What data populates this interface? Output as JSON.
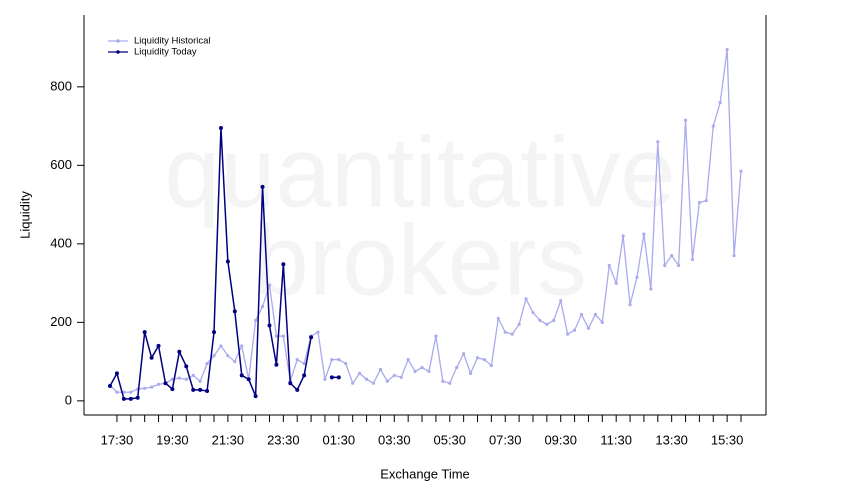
{
  "chart_data": {
    "type": "line",
    "watermark": [
      "quantitative",
      "brokers"
    ],
    "xlabel": "Exchange Time",
    "ylabel": "Liquidity",
    "categories": [
      null,
      "17:30",
      null,
      null,
      null,
      null,
      null,
      null,
      null,
      "19:30",
      null,
      null,
      null,
      null,
      null,
      null,
      null,
      "21:30",
      null,
      null,
      null,
      null,
      null,
      null,
      null,
      "23:30",
      null,
      null,
      null,
      null,
      null,
      null,
      null,
      "01:30",
      null,
      null,
      null,
      null,
      null,
      null,
      null,
      "03:30",
      null,
      null,
      null,
      null,
      null,
      null,
      null,
      "05:30",
      null,
      null,
      null,
      null,
      null,
      null,
      null,
      "07:30",
      null,
      null,
      null,
      null,
      null,
      null,
      null,
      "09:30",
      null,
      null,
      null,
      null,
      null,
      null,
      null,
      "11:30",
      null,
      null,
      null,
      null,
      null,
      null,
      null,
      "13:30",
      null,
      null,
      null,
      null,
      null,
      null,
      null,
      "15:30",
      null,
      null
    ],
    "series": [
      {
        "name": "Liquidity Historical",
        "color": "#aaaaee",
        "values": [
          40,
          22,
          22,
          22,
          30,
          32,
          35,
          42,
          45,
          55,
          58,
          55,
          65,
          50,
          95,
          115,
          140,
          115,
          100,
          140,
          55,
          205,
          240,
          295,
          165,
          165,
          50,
          105,
          95,
          165,
          175,
          55,
          105,
          105,
          95,
          45,
          70,
          55,
          45,
          80,
          50,
          65,
          60,
          105,
          75,
          85,
          75,
          165,
          50,
          45,
          85,
          120,
          70,
          110,
          105,
          90,
          210,
          175,
          170,
          195,
          260,
          225,
          205,
          195,
          205,
          255,
          170,
          180,
          220,
          185,
          220,
          200,
          345,
          300,
          420,
          245,
          315,
          425,
          285,
          660,
          345,
          370,
          345,
          715,
          360,
          505,
          510,
          700,
          760,
          895,
          370,
          585
        ]
      },
      {
        "name": "Liquidity Today",
        "color": "#000080",
        "values": [
          38,
          70,
          5,
          5,
          8,
          175,
          110,
          140,
          45,
          30,
          125,
          88,
          28,
          28,
          25,
          175,
          695,
          355,
          228,
          65,
          55,
          12,
          545,
          192,
          92,
          348,
          45,
          28,
          65,
          162,
          null,
          null,
          60,
          60,
          null,
          null,
          null,
          null,
          null,
          null,
          null,
          null,
          null,
          null,
          null,
          null,
          null,
          null,
          null,
          null,
          null,
          null,
          null,
          null,
          null,
          null,
          null,
          null,
          null,
          null,
          null,
          null,
          null,
          null,
          null,
          null,
          null,
          null,
          null,
          null,
          null,
          null,
          null,
          null,
          null,
          null,
          null,
          null,
          null,
          null,
          null,
          null,
          null,
          null,
          null,
          null,
          null,
          null,
          null,
          null,
          null,
          null
        ]
      }
    ],
    "ylim": [
      -36,
      983
    ],
    "yticks": [
      0,
      200,
      400,
      600,
      800
    ],
    "legend": "top-left"
  }
}
